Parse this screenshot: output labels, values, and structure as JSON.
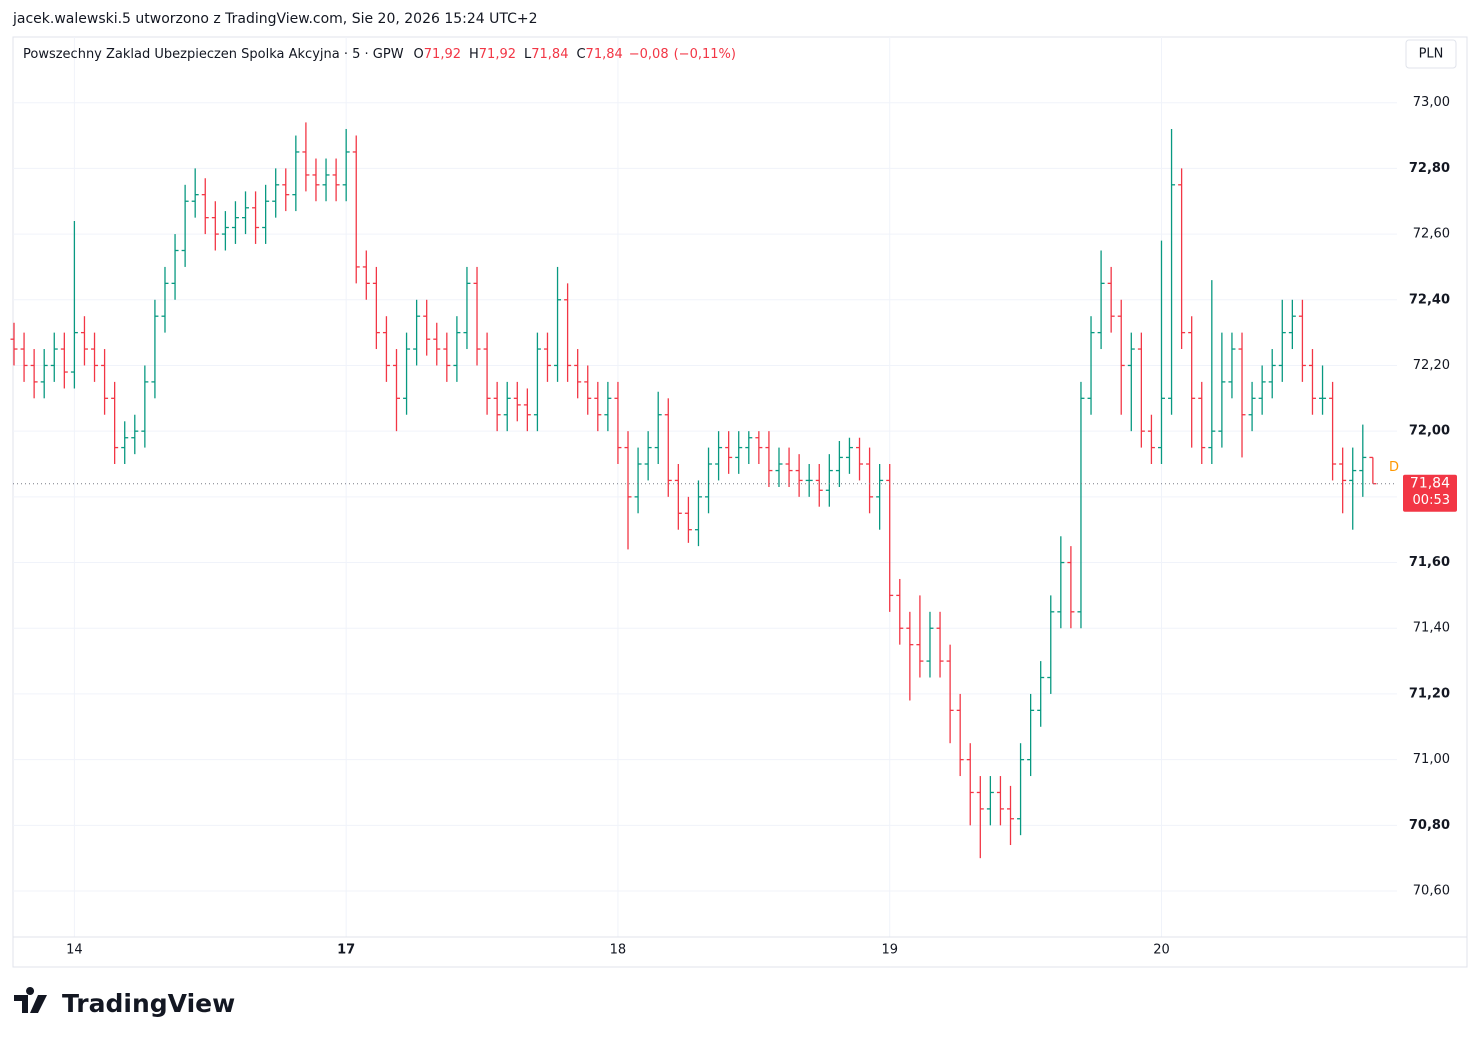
{
  "header": {
    "attribution": "jacek.walewski.5 utworzono z TradingView.com, Sie 20, 2026 15:24 UTC+2"
  },
  "chart_data": {
    "type": "ohlc",
    "symbol": "Powszechny Zaklad Ubezpieczen Spolka Akcyjna · 5 · GPW",
    "legend": [
      {
        "key": "O",
        "value": 71.92,
        "label": "71,92"
      },
      {
        "key": "H",
        "value": 71.92,
        "label": "71,92"
      },
      {
        "key": "L",
        "value": 71.84,
        "label": "71,84"
      },
      {
        "key": "C",
        "value": 71.84,
        "label": "71,84"
      }
    ],
    "change": {
      "value": -0.08,
      "label": "−0,08"
    },
    "change_pct": {
      "value": -0.11,
      "label": "(−0,11%)"
    },
    "currency": "PLN",
    "last_price": {
      "value": 71.84,
      "label": "71,84"
    },
    "countdown": "00:53",
    "marker": "D",
    "up_color": "#089981",
    "down_color": "#f23645",
    "grid": true,
    "xlim": [
      0,
      137
    ],
    "ylim": [
      70.46,
      73.2
    ],
    "xticks": [
      {
        "value": 6,
        "label": "14"
      },
      {
        "value": 33,
        "label": "17"
      },
      {
        "value": 60,
        "label": "18"
      },
      {
        "value": 87,
        "label": "19"
      },
      {
        "value": 114,
        "label": "20"
      }
    ],
    "yticks": [
      {
        "value": 70.6,
        "label": "70,60"
      },
      {
        "value": 70.8,
        "label": "70,80"
      },
      {
        "value": 71.0,
        "label": "71,00"
      },
      {
        "value": 71.2,
        "label": "71,20"
      },
      {
        "value": 71.4,
        "label": "71,40"
      },
      {
        "value": 71.6,
        "label": "71,60"
      },
      {
        "value": 71.8,
        "label": "71,80"
      },
      {
        "value": 72.0,
        "label": "72,00"
      },
      {
        "value": 72.2,
        "label": "72,20"
      },
      {
        "value": 72.4,
        "label": "72,40"
      },
      {
        "value": 72.6,
        "label": "72,60"
      },
      {
        "value": 72.8,
        "label": "72,80"
      },
      {
        "value": 73.0,
        "label": "73,00"
      }
    ],
    "open": [
      72.28,
      72.25,
      72.2,
      72.15,
      72.2,
      72.25,
      72.18,
      72.3,
      72.25,
      72.2,
      72.1,
      71.95,
      71.98,
      72.0,
      72.15,
      72.35,
      72.45,
      72.55,
      72.7,
      72.72,
      72.65,
      72.6,
      72.62,
      72.65,
      72.68,
      72.62,
      72.7,
      72.75,
      72.72,
      72.85,
      72.78,
      72.75,
      72.78,
      72.75,
      72.85,
      72.5,
      72.45,
      72.3,
      72.2,
      72.1,
      72.25,
      72.35,
      72.28,
      72.25,
      72.2,
      72.3,
      72.45,
      72.25,
      72.1,
      72.05,
      72.1,
      72.08,
      72.05,
      72.25,
      72.2,
      72.4,
      72.2,
      72.15,
      72.1,
      72.05,
      72.1,
      71.95,
      71.8,
      71.9,
      71.95,
      72.05,
      71.85,
      71.75,
      71.7,
      71.8,
      71.9,
      71.95,
      71.92,
      71.95,
      71.98,
      71.95,
      71.88,
      71.9,
      71.88,
      71.85,
      71.85,
      71.82,
      71.88,
      71.92,
      71.95,
      71.9,
      71.8,
      71.85,
      71.5,
      71.4,
      71.35,
      71.3,
      71.4,
      71.3,
      71.15,
      71.0,
      70.9,
      70.85,
      70.9,
      70.85,
      70.82,
      71.0,
      71.15,
      71.25,
      71.45,
      71.6,
      71.45,
      72.1,
      72.3,
      72.45,
      72.35,
      72.2,
      72.25,
      72.0,
      71.95,
      72.1,
      72.75,
      72.3,
      72.1,
      71.95,
      72.0,
      72.15,
      72.25,
      72.05,
      72.1,
      72.15,
      72.2,
      72.3,
      72.35,
      72.2,
      72.1,
      72.1,
      71.9,
      71.85,
      71.88,
      71.92
    ],
    "high": [
      72.33,
      72.3,
      72.25,
      72.25,
      72.3,
      72.3,
      72.64,
      72.35,
      72.3,
      72.25,
      72.15,
      72.03,
      72.05,
      72.2,
      72.4,
      72.5,
      72.6,
      72.75,
      72.8,
      72.77,
      72.7,
      72.67,
      72.7,
      72.73,
      72.73,
      72.75,
      72.8,
      72.8,
      72.9,
      72.94,
      72.83,
      72.83,
      72.83,
      72.92,
      72.9,
      72.55,
      72.5,
      72.35,
      72.25,
      72.3,
      72.4,
      72.4,
      72.33,
      72.3,
      72.35,
      72.5,
      72.5,
      72.3,
      72.15,
      72.15,
      72.15,
      72.13,
      72.3,
      72.3,
      72.5,
      72.45,
      72.25,
      72.2,
      72.15,
      72.15,
      72.15,
      72.0,
      71.95,
      72.0,
      72.12,
      72.1,
      71.9,
      71.8,
      71.85,
      71.95,
      72.0,
      72.0,
      72.0,
      72.0,
      72.0,
      72.0,
      71.95,
      71.95,
      71.93,
      71.9,
      71.9,
      71.93,
      71.97,
      71.98,
      71.98,
      71.95,
      71.9,
      71.9,
      71.55,
      71.45,
      71.5,
      71.45,
      71.45,
      71.35,
      71.2,
      71.05,
      70.95,
      70.95,
      70.95,
      70.92,
      71.05,
      71.2,
      71.3,
      71.5,
      71.68,
      71.65,
      72.15,
      72.35,
      72.55,
      72.5,
      72.4,
      72.3,
      72.3,
      72.05,
      72.58,
      72.92,
      72.8,
      72.35,
      72.15,
      72.46,
      72.3,
      72.3,
      72.3,
      72.15,
      72.2,
      72.25,
      72.4,
      72.4,
      72.4,
      72.25,
      72.2,
      72.15,
      71.95,
      71.95,
      72.02,
      71.92
    ],
    "low": [
      72.2,
      72.15,
      72.1,
      72.1,
      72.15,
      72.13,
      72.13,
      72.2,
      72.15,
      72.05,
      71.9,
      71.9,
      71.93,
      71.95,
      72.1,
      72.3,
      72.4,
      72.5,
      72.65,
      72.6,
      72.55,
      72.55,
      72.57,
      72.6,
      72.57,
      72.57,
      72.65,
      72.67,
      72.67,
      72.73,
      72.7,
      72.7,
      72.7,
      72.7,
      72.45,
      72.4,
      72.25,
      72.15,
      72.0,
      72.05,
      72.2,
      72.23,
      72.2,
      72.15,
      72.15,
      72.25,
      72.2,
      72.05,
      72.0,
      72.0,
      72.03,
      72.0,
      72.0,
      72.15,
      72.15,
      72.15,
      72.1,
      72.05,
      72.0,
      72.0,
      71.9,
      71.64,
      71.75,
      71.85,
      71.9,
      71.8,
      71.7,
      71.66,
      71.65,
      71.75,
      71.85,
      71.87,
      71.87,
      71.9,
      71.9,
      71.83,
      71.83,
      71.83,
      71.8,
      71.8,
      71.77,
      71.77,
      71.83,
      71.87,
      71.85,
      71.75,
      71.7,
      71.45,
      71.35,
      71.18,
      71.25,
      71.25,
      71.25,
      71.05,
      70.95,
      70.8,
      70.7,
      70.8,
      70.8,
      70.74,
      70.77,
      70.95,
      71.1,
      71.2,
      71.4,
      71.4,
      71.4,
      72.05,
      72.25,
      72.3,
      72.05,
      72.0,
      71.95,
      71.9,
      71.9,
      72.05,
      72.25,
      71.95,
      71.9,
      71.9,
      71.95,
      72.1,
      71.92,
      72.0,
      72.05,
      72.1,
      72.15,
      72.25,
      72.15,
      72.05,
      72.05,
      71.85,
      71.75,
      71.7,
      71.8,
      71.84
    ],
    "close": [
      72.25,
      72.2,
      72.15,
      72.2,
      72.25,
      72.18,
      72.3,
      72.25,
      72.2,
      72.1,
      71.95,
      71.98,
      72.0,
      72.15,
      72.35,
      72.45,
      72.55,
      72.7,
      72.72,
      72.65,
      72.6,
      72.62,
      72.65,
      72.68,
      72.62,
      72.7,
      72.75,
      72.72,
      72.85,
      72.78,
      72.75,
      72.78,
      72.75,
      72.85,
      72.5,
      72.45,
      72.3,
      72.2,
      72.1,
      72.25,
      72.35,
      72.28,
      72.25,
      72.2,
      72.3,
      72.45,
      72.25,
      72.1,
      72.05,
      72.1,
      72.08,
      72.05,
      72.25,
      72.2,
      72.4,
      72.2,
      72.15,
      72.1,
      72.05,
      72.1,
      71.95,
      71.8,
      71.9,
      71.95,
      72.05,
      71.85,
      71.75,
      71.7,
      71.8,
      71.9,
      71.95,
      71.92,
      71.95,
      71.98,
      71.95,
      71.88,
      71.9,
      71.88,
      71.85,
      71.85,
      71.82,
      71.88,
      71.92,
      71.95,
      71.9,
      71.8,
      71.85,
      71.5,
      71.4,
      71.35,
      71.3,
      71.4,
      71.3,
      71.15,
      71.0,
      70.9,
      70.85,
      70.9,
      70.85,
      70.82,
      71.0,
      71.15,
      71.25,
      71.45,
      71.6,
      71.45,
      72.1,
      72.3,
      72.45,
      72.35,
      72.2,
      72.25,
      72.0,
      71.95,
      72.1,
      72.75,
      72.3,
      72.1,
      71.95,
      72.0,
      72.15,
      72.25,
      72.05,
      72.1,
      72.15,
      72.2,
      72.3,
      72.35,
      72.2,
      72.1,
      72.1,
      71.9,
      71.85,
      71.88,
      71.92,
      71.84
    ]
  },
  "footer": {
    "brand": "TradingView"
  }
}
